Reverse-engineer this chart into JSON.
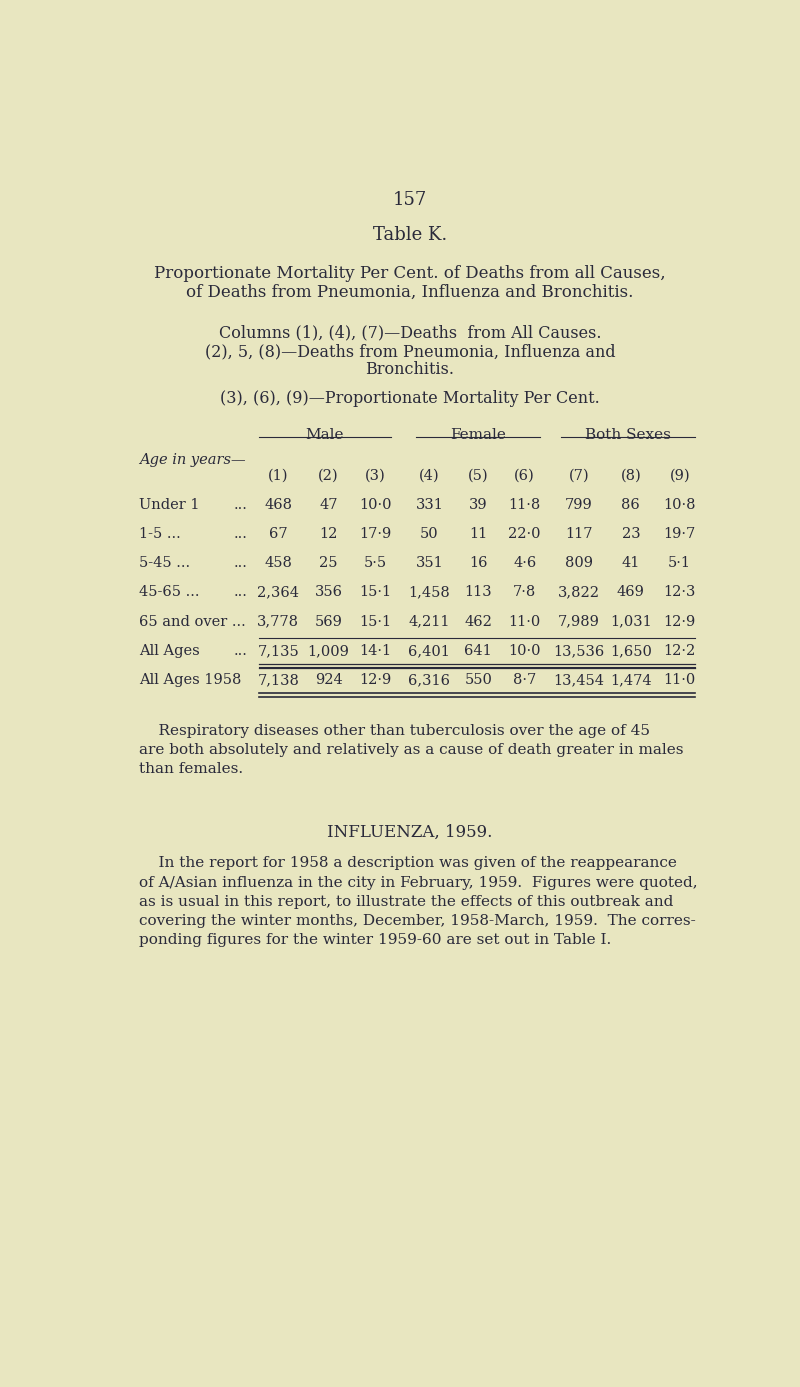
{
  "bg_color": "#e8e6c0",
  "text_color": "#2a2a3a",
  "page_number": "157",
  "table_title": "Table K.",
  "subtitle_line1": "Proportionate Mortality Per Cent. of Deaths from all Causes,",
  "subtitle_line2": "of Deaths from Pneumonia, Influenza and Bronchitis.",
  "col_desc1": "Columns (1), (4), (7)—Deaths  from All Causes.",
  "col_desc2": "(2), 5, (8)—Deaths from Pneumonia, Influenza and",
  "col_desc2b": "Bronchitis.",
  "col_desc3": "(3), (6), (9)—Proportionate Mortality Per Cent.",
  "group_headers": [
    "Male",
    "Female",
    "Both Sexes"
  ],
  "col_sub_headers": [
    "(1)",
    "(2)",
    "(3)",
    "(4)",
    "(5)",
    "(6)",
    "(7)",
    "(8)",
    "(9)"
  ],
  "age_col_header": "Age in years—",
  "rows": [
    {
      "age": "Under 1",
      "dots": "...",
      "c1": "468",
      "c2": "47",
      "c3": "10·0",
      "c4": "331",
      "c5": "39",
      "c6": "11·8",
      "c7": "799",
      "c8": "86",
      "c9": "10·8"
    },
    {
      "age": "1-5 ...",
      "dots": "...",
      "c1": "67",
      "c2": "12",
      "c3": "17·9",
      "c4": "50",
      "c5": "11",
      "c6": "22·0",
      "c7": "117",
      "c8": "23",
      "c9": "19·7"
    },
    {
      "age": "5-45 ...",
      "dots": "...",
      "c1": "458",
      "c2": "25",
      "c3": "5·5",
      "c4": "351",
      "c5": "16",
      "c6": "4·6",
      "c7": "809",
      "c8": "41",
      "c9": "5·1"
    },
    {
      "age": "45-65 ...",
      "dots": "...",
      "c1": "2,364",
      "c2": "356",
      "c3": "15·1",
      "c4": "1,458",
      "c5": "113",
      "c6": "7·8",
      "c7": "3,822",
      "c8": "469",
      "c9": "12·3"
    },
    {
      "age": "65 and over ...",
      "dots": "",
      "c1": "3,778",
      "c2": "569",
      "c3": "15·1",
      "c4": "4,211",
      "c5": "462",
      "c6": "11·0",
      "c7": "7,989",
      "c8": "1,031",
      "c9": "12·9"
    },
    {
      "age": "All Ages",
      "dots": "...",
      "c1": "7,135",
      "c2": "1,009",
      "c3": "14·1",
      "c4": "6,401",
      "c5": "641",
      "c6": "10·0",
      "c7": "13,536",
      "c8": "1,650",
      "c9": "12·2"
    },
    {
      "age": "All Ages 1958",
      "dots": "",
      "c1": "7,138",
      "c2": "924",
      "c3": "12·9",
      "c4": "6,316",
      "c5": "550",
      "c6": "8·7",
      "c7": "13,454",
      "c8": "1,474",
      "c9": "11·0"
    }
  ],
  "paragraph1_indent": "    Respiratory diseases other than tuberculosis over the age of 45",
  "paragraph1_lines": [
    "    Respiratory diseases other than tuberculosis over the age of 45",
    "are both absolutely and relatively as a cause of death greater in males",
    "than females."
  ],
  "influenza_header": "INFLUENZA, 1959.",
  "paragraph2_lines": [
    "    In the report for 1958 a description was given of the reappearance",
    "of A/Asian influenza in the city in February, 1959.  Figures were quoted,",
    "as is usual in this report, to illustrate the effects of this outbreak and",
    "covering the winter months, December, 1958-March, 1959.  The corres-",
    "ponding figures for the winter 1959-60 are set out in Table I."
  ]
}
